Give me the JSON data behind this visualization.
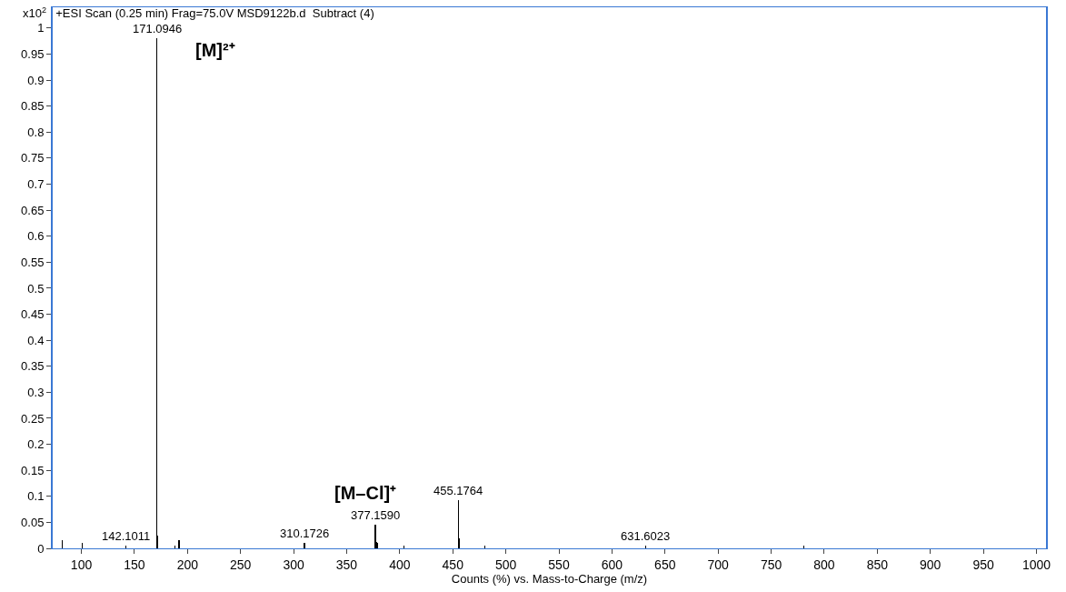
{
  "chart_data": {
    "type": "bar",
    "title": "+ESI Scan (0.25 min) Frag=75.0V MSD9122b.d  Subtract (4)",
    "xlabel": "Counts (%) vs. Mass-to-Charge (m/z)",
    "ylabel": "x10$^{2}$",
    "x": [
      82,
      101,
      142.1011,
      171.0946,
      172.1,
      188,
      192,
      310.1726,
      377.159,
      378.2,
      379.2,
      404,
      455.1764,
      456.2,
      480,
      631.6023,
      781
    ],
    "values": [
      0.015,
      0.011,
      0.006,
      0.98,
      0.025,
      0.005,
      0.015,
      0.01,
      0.046,
      0.012,
      0.01,
      0.005,
      0.092,
      0.02,
      0.005,
      0.006,
      0.005
    ],
    "color": "#000000",
    "annotations": [
      {
        "text": "171.0946",
        "x": 171.0946,
        "y": 0.98
      },
      {
        "text": "[M]²⁺",
        "x": 171.0946,
        "y": 0.98
      },
      {
        "text": "142.1011",
        "x": 142.1011,
        "y": 0.006
      },
      {
        "text": "310.1726",
        "x": 310.1726,
        "y": 0.01
      },
      {
        "text": "377.1590",
        "x": 377.159,
        "y": 0.046
      },
      {
        "text": "[M–Cl]⁺",
        "x": 377.159,
        "y": 0.046
      },
      {
        "text": "455.1764",
        "x": 455.1764,
        "y": 0.092
      },
      {
        "text": "631.6023",
        "x": 631.6023,
        "y": 0.006
      }
    ],
    "xlim": [
      73,
      1009
    ],
    "xticks": [
      100,
      150,
      200,
      250,
      300,
      350,
      400,
      450,
      500,
      550,
      600,
      650,
      700,
      750,
      800,
      850,
      900,
      950,
      1000
    ],
    "ylim": [
      0,
      1.04
    ],
    "yticks": [
      0,
      0.05,
      0.1,
      0.15,
      0.2,
      0.25,
      0.3,
      0.35,
      0.4,
      0.45,
      0.5,
      0.55,
      0.6,
      0.65,
      0.7,
      0.75,
      0.8,
      0.85,
      0.9,
      0.95,
      1
    ],
    "grid": false,
    "legend": false
  }
}
